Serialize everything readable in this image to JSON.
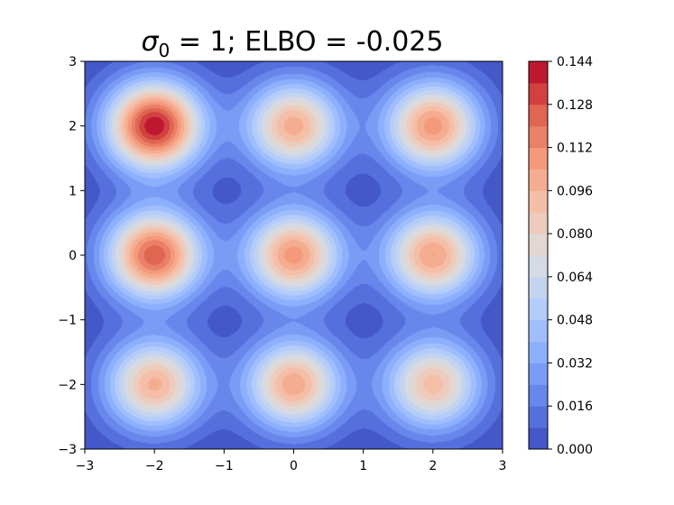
{
  "chart_data": {
    "type": "heatmap",
    "subtype": "filled-contour",
    "title": {
      "symbol": "σ",
      "subscript": "0",
      "text": " = 1; ELBO = -0.025"
    },
    "xlabel": "",
    "ylabel": "",
    "xlim": [
      -3,
      3
    ],
    "ylim": [
      -3,
      3
    ],
    "xticks": [
      -3,
      -2,
      -1,
      0,
      1,
      2,
      3
    ],
    "yticks": [
      -3,
      -2,
      -1,
      0,
      1,
      2,
      3
    ],
    "xtick_labels": [
      "−3",
      "−2",
      "−1",
      "0",
      "1",
      "2",
      "3"
    ],
    "ytick_labels": [
      "−3",
      "−2",
      "−1",
      "0",
      "1",
      "2",
      "3"
    ],
    "grid": false,
    "colormap": "coolwarm",
    "component_sigma": 0.48,
    "mixture_components": [
      {
        "x": -2,
        "y": 2,
        "peak": 0.142
      },
      {
        "x": 0,
        "y": 2,
        "peak": 0.1
      },
      {
        "x": 2,
        "y": 2,
        "peak": 0.108
      },
      {
        "x": -2,
        "y": 0,
        "peak": 0.126
      },
      {
        "x": 0,
        "y": 0,
        "peak": 0.108
      },
      {
        "x": 2,
        "y": 0,
        "peak": 0.104
      },
      {
        "x": -2,
        "y": -2,
        "peak": 0.098
      },
      {
        "x": 0,
        "y": -2,
        "peak": 0.102
      },
      {
        "x": 2,
        "y": -2,
        "peak": 0.092
      }
    ],
    "colorbar": {
      "min": 0.0,
      "max": 0.144,
      "levels": 18,
      "tick_values": [
        0.0,
        0.016,
        0.032,
        0.048,
        0.064,
        0.08,
        0.096,
        0.112,
        0.128,
        0.144
      ],
      "tick_labels": [
        "0.000",
        "0.016",
        "0.032",
        "0.048",
        "0.064",
        "0.080",
        "0.096",
        "0.112",
        "0.128",
        "0.144"
      ]
    }
  }
}
